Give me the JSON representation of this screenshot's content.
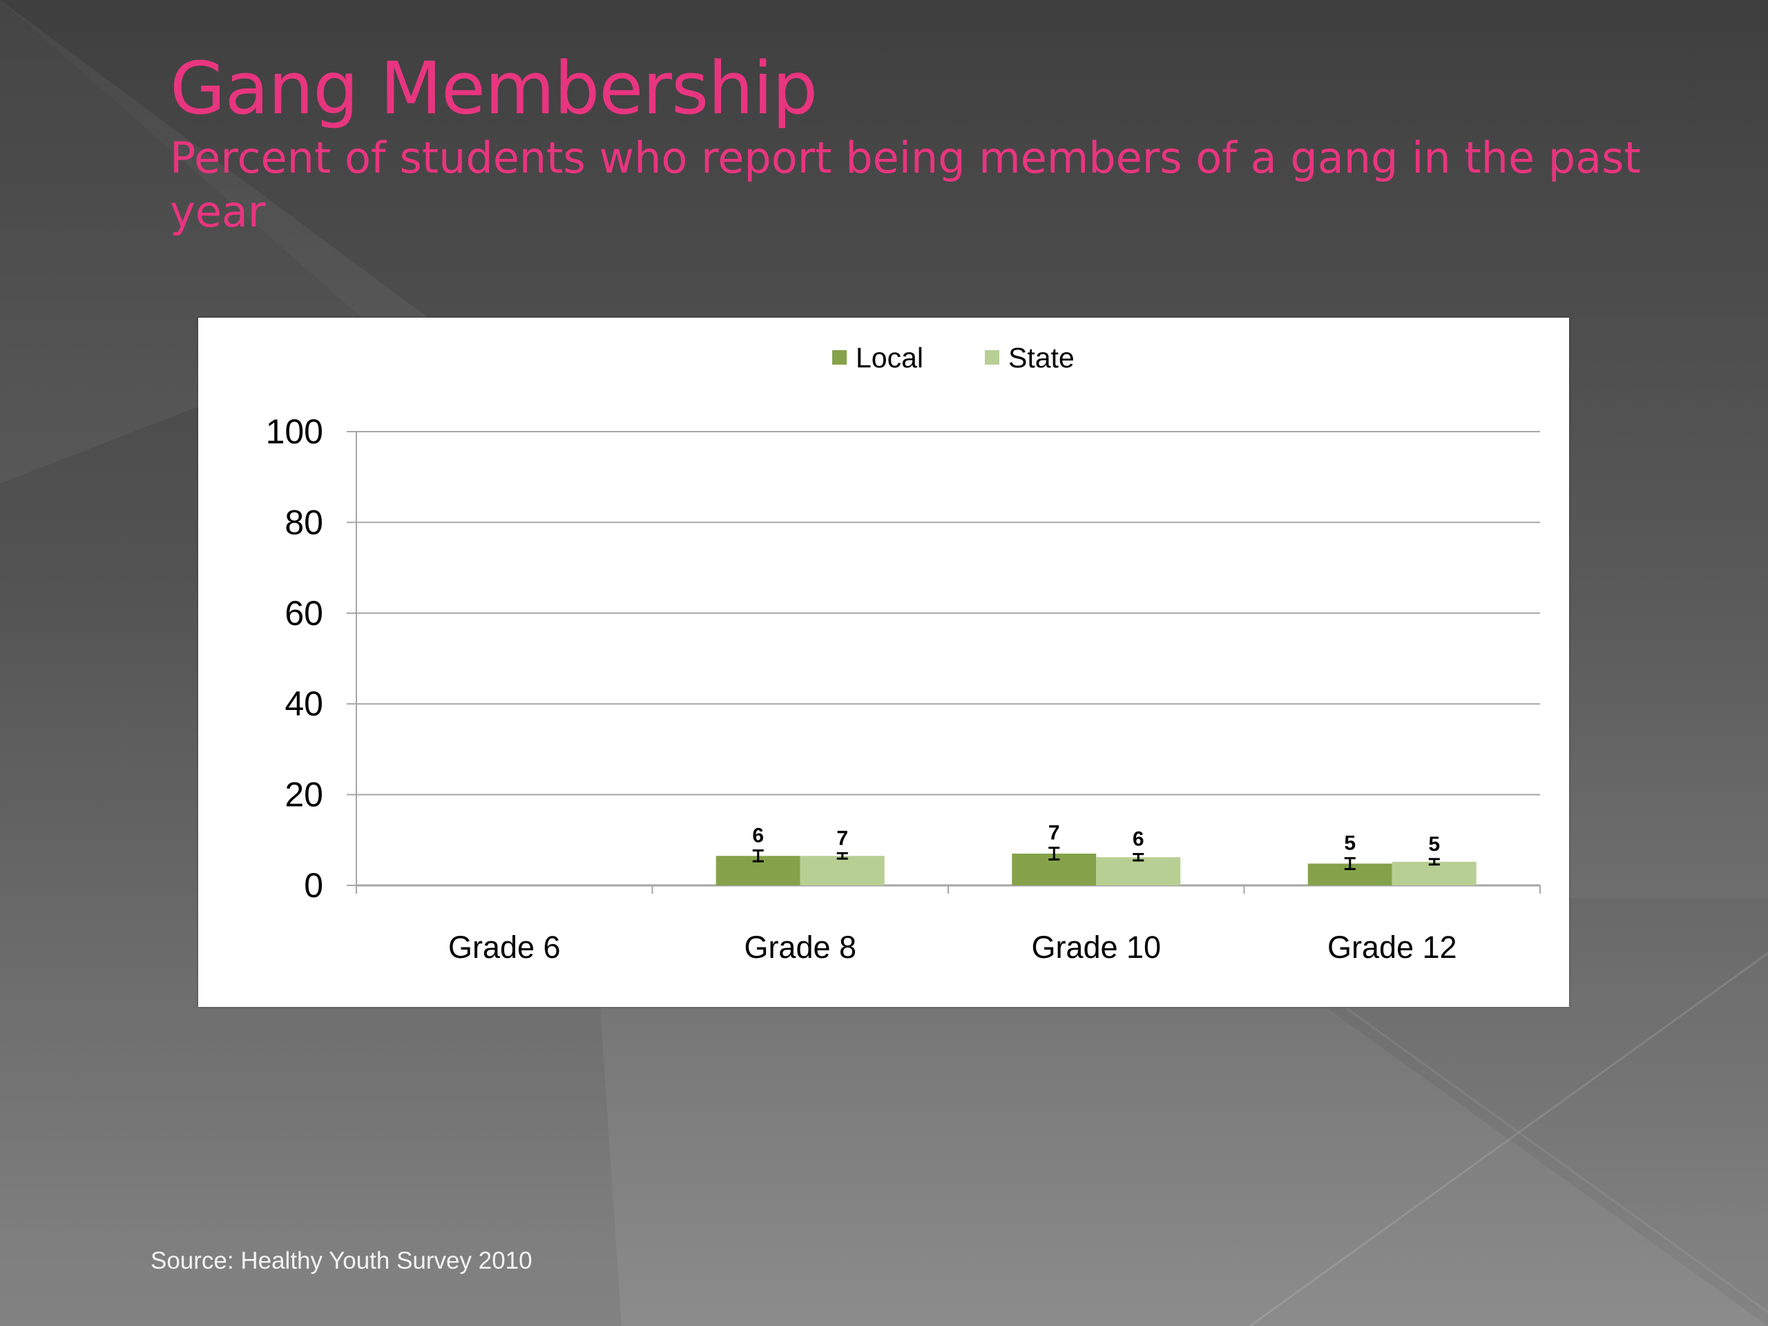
{
  "slide": {
    "title": "Gang Membership",
    "subtitle": "Percent of students who report being members of a gang in the past year",
    "source": "Source: Healthy Youth Survey 2010"
  },
  "colors": {
    "title": "#e8357f",
    "local": "#85a24a",
    "state": "#b8cf94",
    "grid": "#a6a6a6",
    "axis_text": "#000000"
  },
  "chart_data": {
    "type": "bar",
    "categories": [
      "Grade 6",
      "Grade 8",
      "Grade 10",
      "Grade 12"
    ],
    "series": [
      {
        "name": "Local",
        "values": [
          null,
          6.5,
          7,
          4.8
        ],
        "labels": [
          "",
          "6",
          "7",
          "5"
        ],
        "error": [
          null,
          1.2,
          1.3,
          1.2
        ]
      },
      {
        "name": "State",
        "values": [
          null,
          6.5,
          6.2,
          5.2
        ],
        "labels": [
          "",
          "7",
          "6",
          "5"
        ],
        "error": [
          null,
          0.6,
          0.7,
          0.6
        ]
      }
    ],
    "ylim": [
      0,
      100
    ],
    "yticks": [
      "0",
      "20",
      "40",
      "60",
      "80",
      "100"
    ],
    "grid": true,
    "legend": "top-center",
    "title": "",
    "xlabel": "",
    "ylabel": ""
  }
}
